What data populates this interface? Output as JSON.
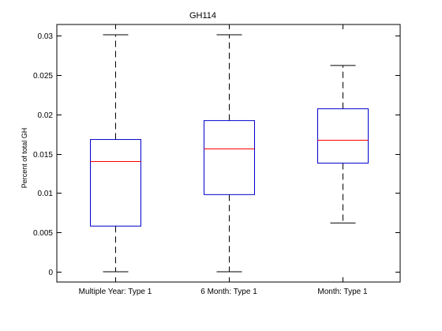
{
  "chart_data": {
    "type": "box",
    "title": "GH114",
    "xlabel": "",
    "ylabel": "Percent of total GH",
    "ylim": [
      0,
      0.03
    ],
    "yticks": [
      0,
      0.005,
      0.01,
      0.015,
      0.02,
      0.025,
      0.03
    ],
    "ytick_labels": [
      "0",
      "0.005",
      "0.01",
      "0.015",
      "0.02",
      "0.025",
      "0.03"
    ],
    "grid": false,
    "categories": [
      "Multiple Year: Type 1",
      "6 Month: Type 1",
      "Month: Type 1"
    ],
    "boxes": [
      {
        "min": 0.0,
        "q1": 0.0058,
        "median": 0.014,
        "q3": 0.0168,
        "max": 0.0301
      },
      {
        "min": 0.0,
        "q1": 0.0098,
        "median": 0.0156,
        "q3": 0.0192,
        "max": 0.0301
      },
      {
        "min": 0.0062,
        "q1": 0.0138,
        "median": 0.0167,
        "q3": 0.0207,
        "max": 0.0262
      }
    ],
    "colors": {
      "box": "#0000cc",
      "median": "#ff0000",
      "whisker": "#000000",
      "axes": "#000000"
    }
  }
}
